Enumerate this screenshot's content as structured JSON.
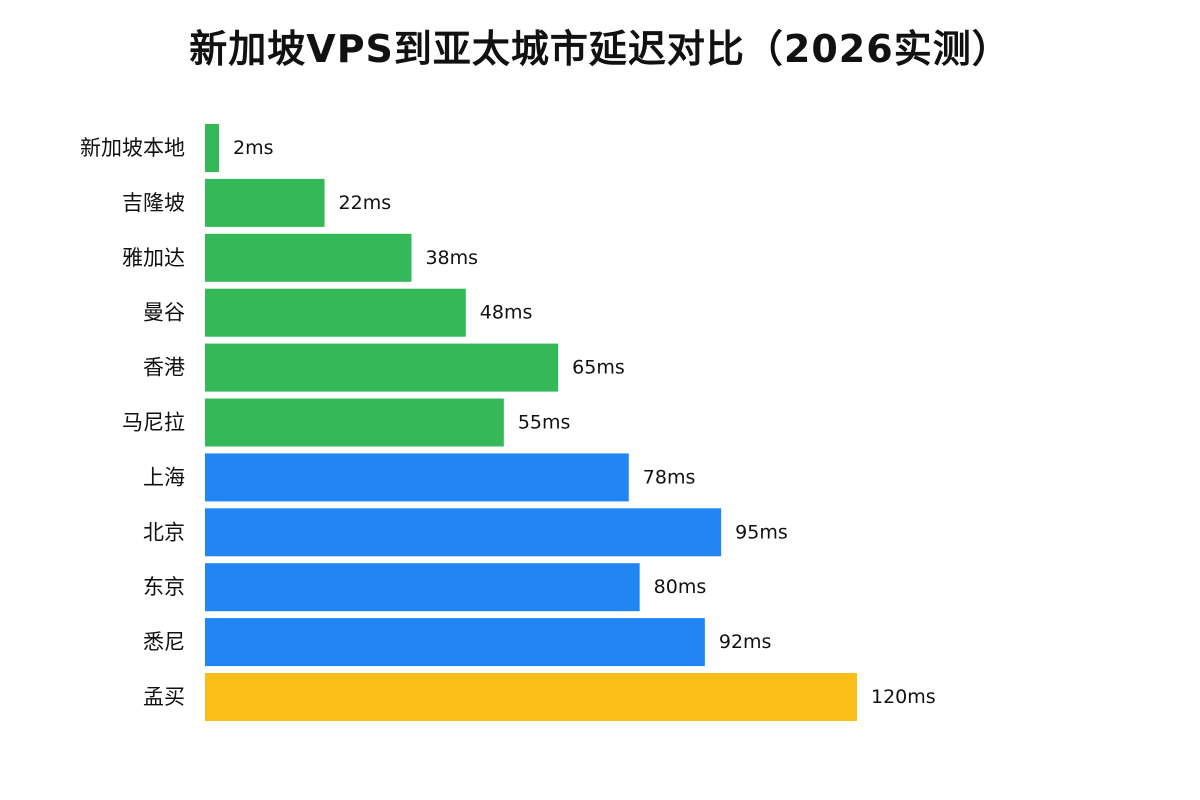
{
  "chart_data": {
    "type": "bar",
    "orientation": "horizontal",
    "title": "新加坡VPS到亚太城市延迟对比（2026实测）",
    "categories": [
      "新加坡本地",
      "吉隆坡",
      "雅加达",
      "曼谷",
      "香港",
      "马尼拉",
      "上海",
      "北京",
      "东京",
      "悉尼",
      "孟买"
    ],
    "values": [
      2,
      22,
      38,
      48,
      65,
      55,
      78,
      95,
      80,
      92,
      120
    ],
    "value_labels": [
      "2ms",
      "22ms",
      "38ms",
      "48ms",
      "65ms",
      "55ms",
      "78ms",
      "95ms",
      "80ms",
      "92ms",
      "120ms"
    ],
    "bar_colors": [
      "#34b858",
      "#34b858",
      "#34b858",
      "#34b858",
      "#34b858",
      "#34b858",
      "#2186f4",
      "#2186f4",
      "#2186f4",
      "#2186f4",
      "#fbbd17"
    ],
    "xlabel": "",
    "ylabel": "",
    "xlim": [
      0,
      120
    ],
    "grid": false,
    "legend": "none"
  }
}
